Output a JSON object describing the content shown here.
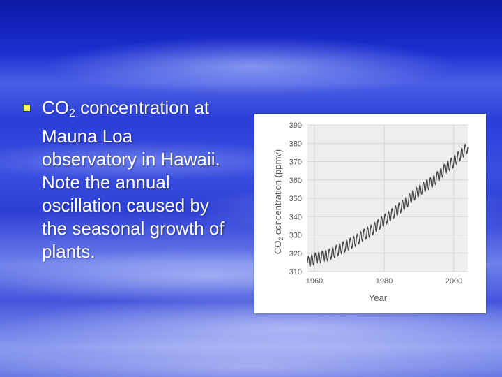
{
  "bullet": {
    "line1_pre": "CO",
    "line1_sub": "2",
    "line1_post": " concentration at",
    "line2": "Mauna Loa",
    "line3": "observatory in Hawaii.",
    "line4": "Note the annual",
    "line5": "oscillation caused by",
    "line6": "the seasonal growth of",
    "line7": "plants."
  },
  "colors": {
    "bullet_mark": "#f4f070",
    "text": "#ffffff",
    "line": "#444444",
    "plot_bg": "#eeeeee"
  },
  "chart_data": {
    "type": "line",
    "xlabel": "Year",
    "ylabel_pre": "CO",
    "ylabel_sub": "2",
    "ylabel_post": " concentration (ppmv)",
    "xlim": [
      1958,
      2004
    ],
    "ylim": [
      310,
      390
    ],
    "xticks": [
      "1960",
      "1980",
      "2000"
    ],
    "yticks": [
      "310",
      "320",
      "330",
      "340",
      "350",
      "360",
      "370",
      "380",
      "390"
    ],
    "grid": true,
    "series": [
      {
        "annual_points": [
          [
            1958,
            315
          ],
          [
            1960,
            317
          ],
          [
            1962,
            318
          ],
          [
            1964,
            319
          ],
          [
            1966,
            321
          ],
          [
            1968,
            323
          ],
          [
            1970,
            325
          ],
          [
            1972,
            327
          ],
          [
            1974,
            330
          ],
          [
            1976,
            332
          ],
          [
            1978,
            335
          ],
          [
            1980,
            338
          ],
          [
            1982,
            341
          ],
          [
            1984,
            344
          ],
          [
            1986,
            347
          ],
          [
            1988,
            351
          ],
          [
            1990,
            354
          ],
          [
            1992,
            357
          ],
          [
            1994,
            359
          ],
          [
            1996,
            363
          ],
          [
            1998,
            367
          ],
          [
            2000,
            370
          ],
          [
            2002,
            374
          ],
          [
            2004,
            378
          ]
        ],
        "seasonal_amplitude": 3
      }
    ]
  }
}
